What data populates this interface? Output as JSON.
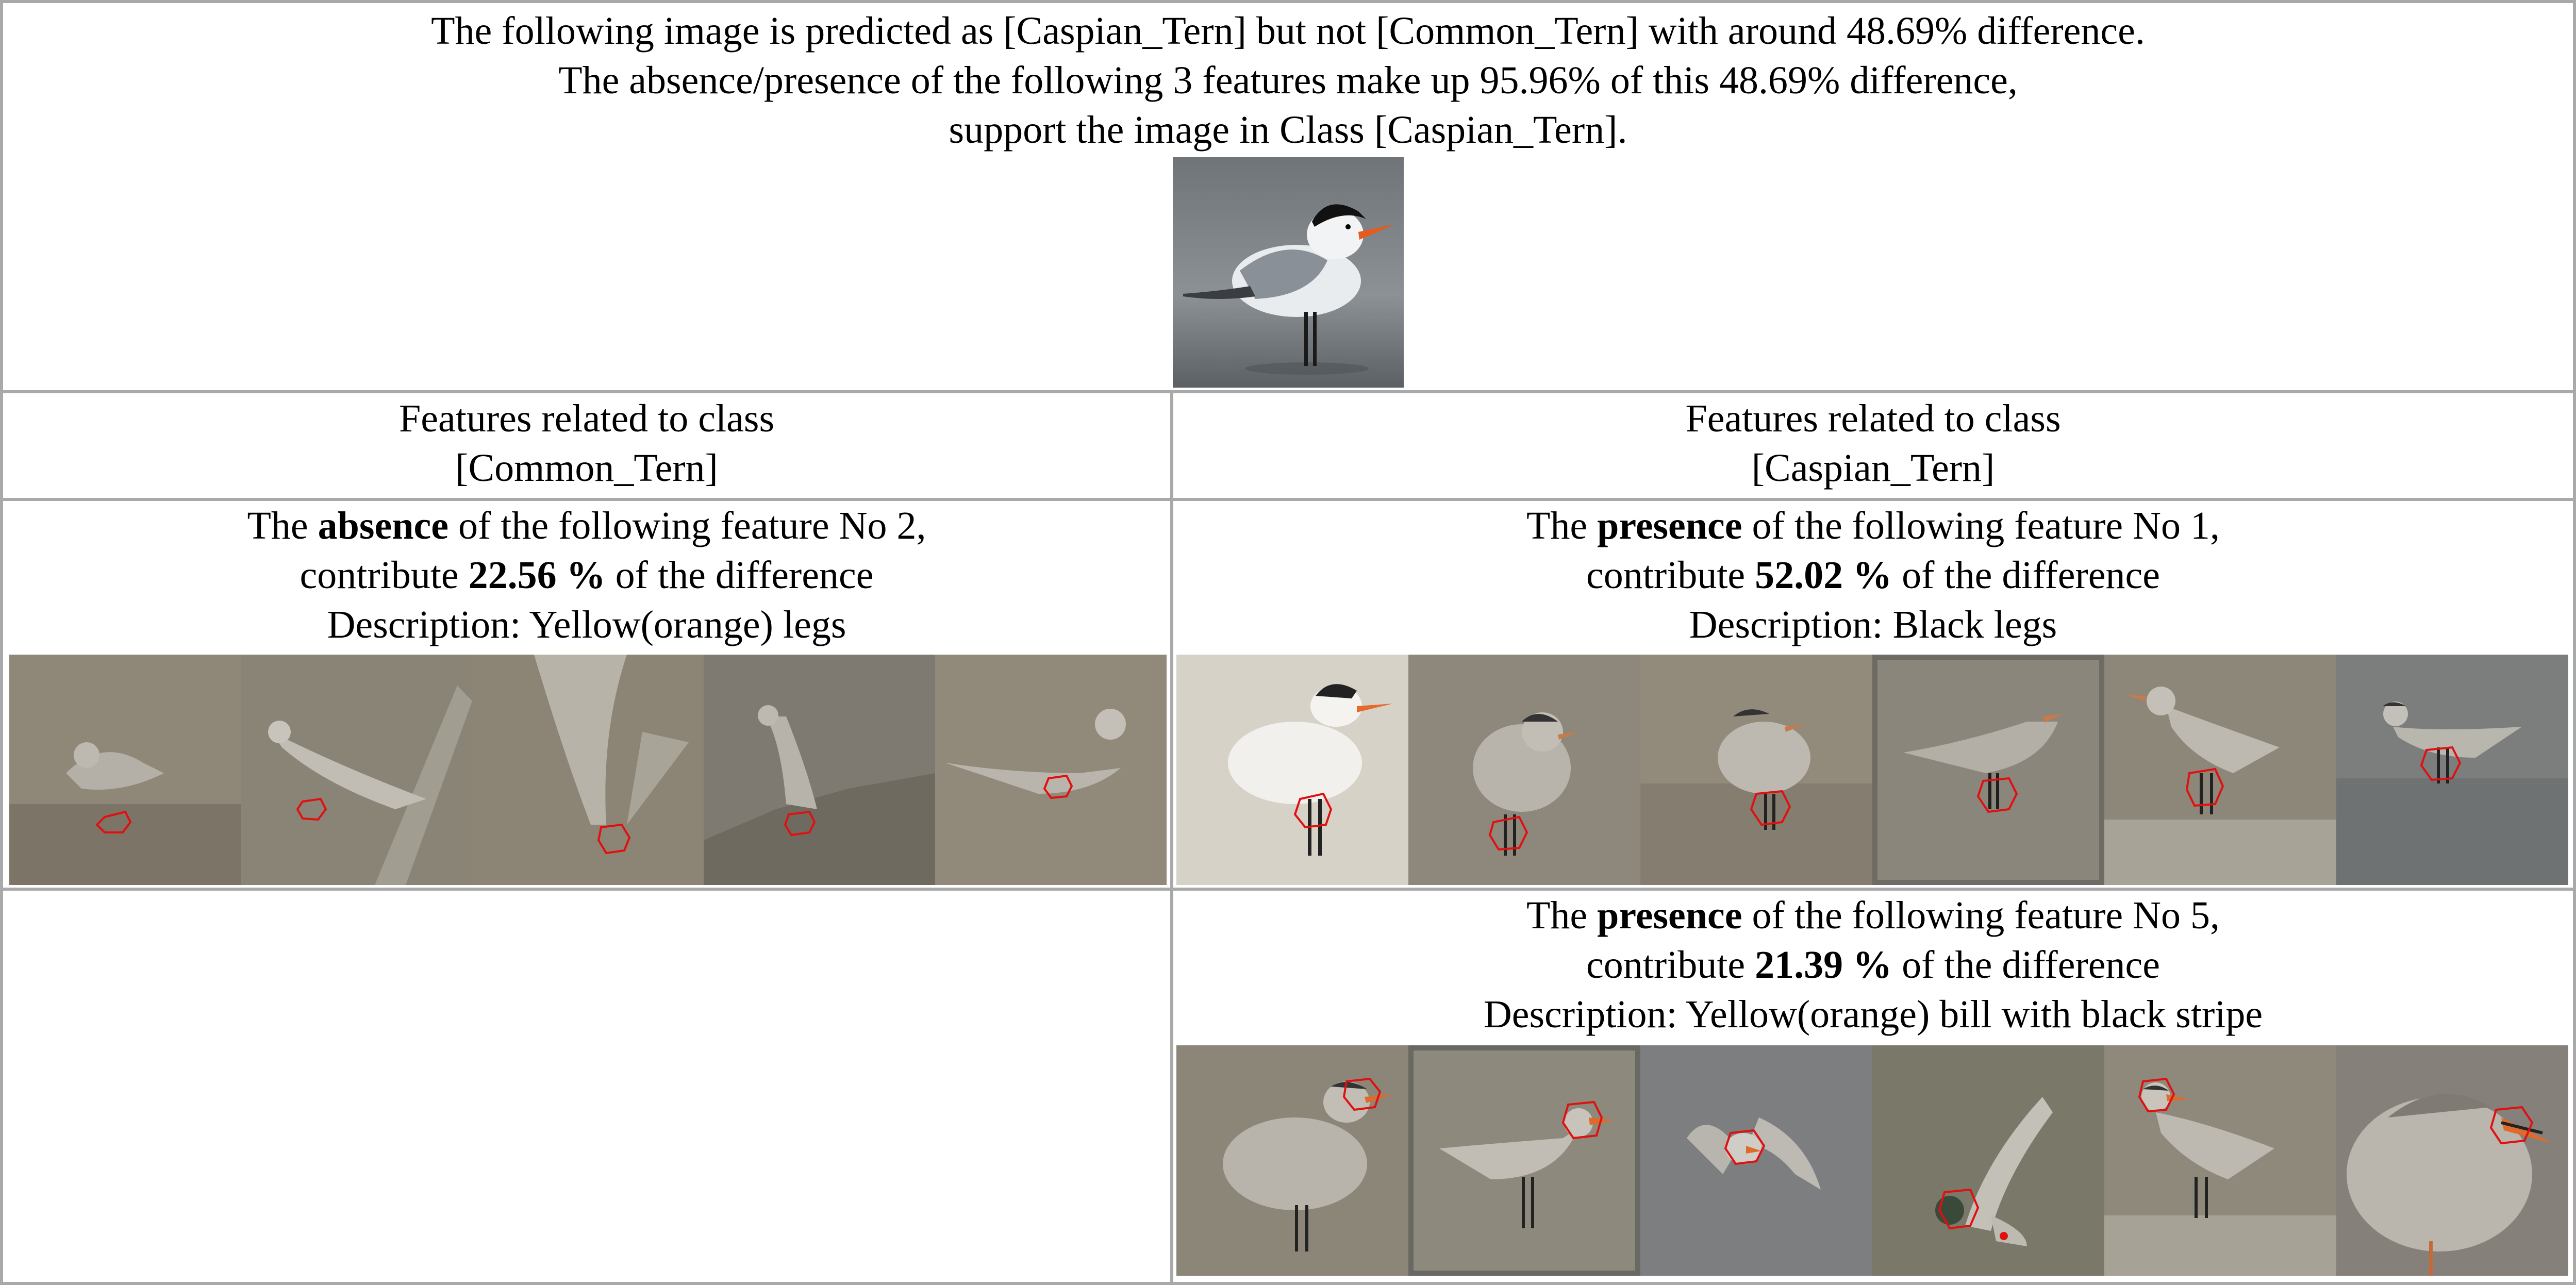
{
  "header": {
    "line1": "The following image is predicted as [Caspian_Tern] but not [Common_Tern] with around 48.69% difference.",
    "line2": "The absence/presence of the following 3 features make up 95.96% of this 48.69% difference,",
    "line3": "support the image in Class [Caspian_Tern]."
  },
  "columns": {
    "left": {
      "heading_line1": "Features related to class",
      "heading_line2": "[Common_Tern]"
    },
    "right": {
      "heading_line1": "Features related to class",
      "heading_line2": "[Caspian_Tern]"
    }
  },
  "features": {
    "f2": {
      "prefix": "The ",
      "keyword": "absence",
      "middle": " of the following feature No 2,",
      "contrib_prefix": "contribute ",
      "percent": "22.56 %",
      "contrib_suffix": " of the difference",
      "description": "Description: Yellow(orange) legs"
    },
    "f1": {
      "prefix": "The ",
      "keyword": "presence",
      "middle": " of the following feature No 1,",
      "contrib_prefix": "contribute ",
      "percent": "52.02 %",
      "contrib_suffix": " of the difference",
      "description": "Description: Black legs"
    },
    "f5": {
      "prefix": "The ",
      "keyword": "presence",
      "middle": " of the following feature No 5,",
      "contrib_prefix": "contribute ",
      "percent": "21.39 %",
      "contrib_suffix": " of the difference",
      "description": "Description: Yellow(orange) bill with black stripe"
    }
  },
  "colors": {
    "grid": "#a9a9a9",
    "highlight": "#e01010",
    "sand": "#8f8777",
    "water": "#7d8288"
  }
}
